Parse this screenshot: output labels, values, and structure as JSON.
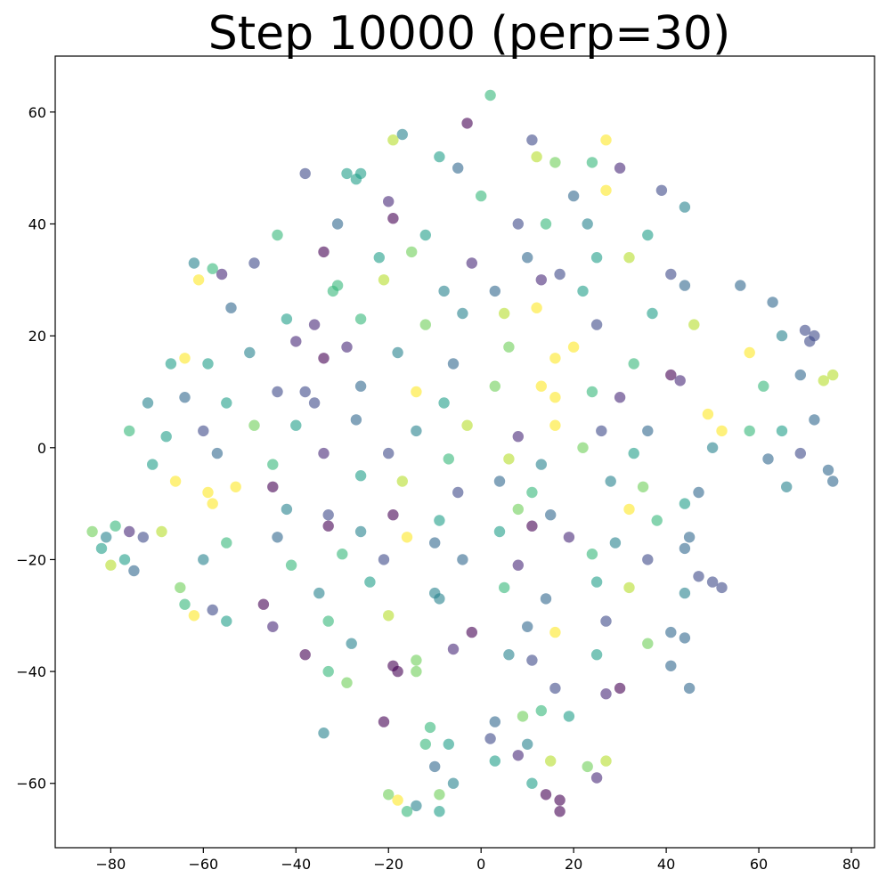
{
  "chart_data": {
    "type": "scatter",
    "title": "Step 10000 (perp=30)",
    "xlabel": "",
    "ylabel": "",
    "xlim": [
      -92,
      85
    ],
    "ylim": [
      -71.5,
      70
    ],
    "xticks": [
      -80,
      -60,
      -40,
      -20,
      0,
      20,
      40,
      60,
      80
    ],
    "yticks": [
      -60,
      -40,
      -20,
      0,
      20,
      40,
      60
    ],
    "grid": false,
    "legend": "none",
    "colormap": "viridis",
    "point_alpha": 0.6,
    "palette": [
      "#440154",
      "#482878",
      "#3e4989",
      "#31688e",
      "#26828e",
      "#1f9e89",
      "#35b779",
      "#6ece58",
      "#b5de2b",
      "#fde725"
    ],
    "points": [
      {
        "x": 2,
        "y": 63,
        "c": 6
      },
      {
        "x": -3,
        "y": 58,
        "c": 0
      },
      {
        "x": -17,
        "y": 56,
        "c": 4
      },
      {
        "x": -19,
        "y": 55,
        "c": 8
      },
      {
        "x": 11,
        "y": 55,
        "c": 2
      },
      {
        "x": 27,
        "y": 55,
        "c": 9
      },
      {
        "x": -9,
        "y": 52,
        "c": 5
      },
      {
        "x": 16,
        "y": 51,
        "c": 7
      },
      {
        "x": 24,
        "y": 51,
        "c": 6
      },
      {
        "x": -38,
        "y": 49,
        "c": 2
      },
      {
        "x": -29,
        "y": 49,
        "c": 5
      },
      {
        "x": -27,
        "y": 48,
        "c": 5
      },
      {
        "x": -26,
        "y": 49,
        "c": 5
      },
      {
        "x": -5,
        "y": 50,
        "c": 3
      },
      {
        "x": 12,
        "y": 52,
        "c": 8
      },
      {
        "x": 30,
        "y": 50,
        "c": 1
      },
      {
        "x": 39,
        "y": 46,
        "c": 2
      },
      {
        "x": 44,
        "y": 43,
        "c": 4
      },
      {
        "x": -20,
        "y": 44,
        "c": 1
      },
      {
        "x": -19,
        "y": 41,
        "c": 0
      },
      {
        "x": 0,
        "y": 45,
        "c": 6
      },
      {
        "x": 20,
        "y": 45,
        "c": 3
      },
      {
        "x": 27,
        "y": 46,
        "c": 9
      },
      {
        "x": -31,
        "y": 40,
        "c": 3
      },
      {
        "x": -44,
        "y": 38,
        "c": 6
      },
      {
        "x": -12,
        "y": 38,
        "c": 5
      },
      {
        "x": 8,
        "y": 40,
        "c": 2
      },
      {
        "x": 14,
        "y": 40,
        "c": 6
      },
      {
        "x": 23,
        "y": 40,
        "c": 4
      },
      {
        "x": 36,
        "y": 38,
        "c": 5
      },
      {
        "x": -62,
        "y": 33,
        "c": 4
      },
      {
        "x": -58,
        "y": 32,
        "c": 6
      },
      {
        "x": -49,
        "y": 33,
        "c": 2
      },
      {
        "x": -34,
        "y": 35,
        "c": 0
      },
      {
        "x": -22,
        "y": 34,
        "c": 5
      },
      {
        "x": -15,
        "y": 35,
        "c": 7
      },
      {
        "x": -2,
        "y": 33,
        "c": 1
      },
      {
        "x": 10,
        "y": 34,
        "c": 3
      },
      {
        "x": 25,
        "y": 34,
        "c": 5
      },
      {
        "x": 32,
        "y": 34,
        "c": 8
      },
      {
        "x": 41,
        "y": 31,
        "c": 2
      },
      {
        "x": -61,
        "y": 30,
        "c": 9
      },
      {
        "x": -56,
        "y": 31,
        "c": 1
      },
      {
        "x": -32,
        "y": 28,
        "c": 6
      },
      {
        "x": -31,
        "y": 29,
        "c": 6
      },
      {
        "x": -21,
        "y": 30,
        "c": 8
      },
      {
        "x": -8,
        "y": 28,
        "c": 4
      },
      {
        "x": 3,
        "y": 28,
        "c": 3
      },
      {
        "x": 13,
        "y": 30,
        "c": 1
      },
      {
        "x": 17,
        "y": 31,
        "c": 2
      },
      {
        "x": 22,
        "y": 28,
        "c": 5
      },
      {
        "x": 44,
        "y": 29,
        "c": 3
      },
      {
        "x": 56,
        "y": 29,
        "c": 3
      },
      {
        "x": 63,
        "y": 26,
        "c": 3
      },
      {
        "x": -54,
        "y": 25,
        "c": 3
      },
      {
        "x": -42,
        "y": 23,
        "c": 5
      },
      {
        "x": -36,
        "y": 22,
        "c": 1
      },
      {
        "x": -26,
        "y": 23,
        "c": 6
      },
      {
        "x": -12,
        "y": 22,
        "c": 7
      },
      {
        "x": -4,
        "y": 24,
        "c": 4
      },
      {
        "x": 5,
        "y": 24,
        "c": 8
      },
      {
        "x": 12,
        "y": 25,
        "c": 9
      },
      {
        "x": 25,
        "y": 22,
        "c": 2
      },
      {
        "x": 37,
        "y": 24,
        "c": 5
      },
      {
        "x": 46,
        "y": 22,
        "c": 8
      },
      {
        "x": 65,
        "y": 20,
        "c": 4
      },
      {
        "x": 70,
        "y": 21,
        "c": 2
      },
      {
        "x": 72,
        "y": 20,
        "c": 2
      },
      {
        "x": 71,
        "y": 19,
        "c": 2
      },
      {
        "x": -67,
        "y": 15,
        "c": 5
      },
      {
        "x": -64,
        "y": 16,
        "c": 9
      },
      {
        "x": -59,
        "y": 15,
        "c": 5
      },
      {
        "x": -50,
        "y": 17,
        "c": 4
      },
      {
        "x": -40,
        "y": 19,
        "c": 1
      },
      {
        "x": -34,
        "y": 16,
        "c": 0
      },
      {
        "x": -29,
        "y": 18,
        "c": 1
      },
      {
        "x": -18,
        "y": 17,
        "c": 4
      },
      {
        "x": -6,
        "y": 15,
        "c": 3
      },
      {
        "x": 6,
        "y": 18,
        "c": 7
      },
      {
        "x": 16,
        "y": 16,
        "c": 9
      },
      {
        "x": 20,
        "y": 18,
        "c": 9
      },
      {
        "x": 33,
        "y": 15,
        "c": 6
      },
      {
        "x": 58,
        "y": 17,
        "c": 9
      },
      {
        "x": 69,
        "y": 13,
        "c": 3
      },
      {
        "x": 74,
        "y": 12,
        "c": 8
      },
      {
        "x": 76,
        "y": 13,
        "c": 8
      },
      {
        "x": -72,
        "y": 8,
        "c": 4
      },
      {
        "x": -64,
        "y": 9,
        "c": 3
      },
      {
        "x": -55,
        "y": 8,
        "c": 5
      },
      {
        "x": -44,
        "y": 10,
        "c": 2
      },
      {
        "x": -38,
        "y": 10,
        "c": 2
      },
      {
        "x": -36,
        "y": 8,
        "c": 2
      },
      {
        "x": -26,
        "y": 11,
        "c": 3
      },
      {
        "x": -14,
        "y": 10,
        "c": 9
      },
      {
        "x": -8,
        "y": 8,
        "c": 5
      },
      {
        "x": 3,
        "y": 11,
        "c": 7
      },
      {
        "x": 13,
        "y": 11,
        "c": 9
      },
      {
        "x": 16,
        "y": 9,
        "c": 9
      },
      {
        "x": 24,
        "y": 10,
        "c": 6
      },
      {
        "x": 30,
        "y": 9,
        "c": 1
      },
      {
        "x": 41,
        "y": 13,
        "c": 0
      },
      {
        "x": 43,
        "y": 12,
        "c": 1
      },
      {
        "x": 61,
        "y": 11,
        "c": 6
      },
      {
        "x": -76,
        "y": 3,
        "c": 6
      },
      {
        "x": -68,
        "y": 2,
        "c": 5
      },
      {
        "x": -60,
        "y": 3,
        "c": 2
      },
      {
        "x": -49,
        "y": 4,
        "c": 7
      },
      {
        "x": -40,
        "y": 4,
        "c": 5
      },
      {
        "x": -27,
        "y": 5,
        "c": 3
      },
      {
        "x": -14,
        "y": 3,
        "c": 4
      },
      {
        "x": -3,
        "y": 4,
        "c": 8
      },
      {
        "x": 8,
        "y": 2,
        "c": 1
      },
      {
        "x": 16,
        "y": 4,
        "c": 9
      },
      {
        "x": 26,
        "y": 3,
        "c": 2
      },
      {
        "x": 36,
        "y": 3,
        "c": 3
      },
      {
        "x": 49,
        "y": 6,
        "c": 9
      },
      {
        "x": 52,
        "y": 3,
        "c": 9
      },
      {
        "x": 58,
        "y": 3,
        "c": 6
      },
      {
        "x": 65,
        "y": 3,
        "c": 5
      },
      {
        "x": 72,
        "y": 5,
        "c": 3
      },
      {
        "x": -71,
        "y": -3,
        "c": 5
      },
      {
        "x": -57,
        "y": -1,
        "c": 3
      },
      {
        "x": -45,
        "y": -3,
        "c": 6
      },
      {
        "x": -34,
        "y": -1,
        "c": 1
      },
      {
        "x": -20,
        "y": -1,
        "c": 2
      },
      {
        "x": -7,
        "y": -2,
        "c": 6
      },
      {
        "x": 6,
        "y": -2,
        "c": 8
      },
      {
        "x": 13,
        "y": -3,
        "c": 4
      },
      {
        "x": 22,
        "y": 0,
        "c": 7
      },
      {
        "x": 33,
        "y": -1,
        "c": 5
      },
      {
        "x": 50,
        "y": 0,
        "c": 4
      },
      {
        "x": 62,
        "y": -2,
        "c": 3
      },
      {
        "x": 69,
        "y": -1,
        "c": 2
      },
      {
        "x": 75,
        "y": -4,
        "c": 3
      },
      {
        "x": -66,
        "y": -6,
        "c": 9
      },
      {
        "x": -59,
        "y": -8,
        "c": 9
      },
      {
        "x": -53,
        "y": -7,
        "c": 9
      },
      {
        "x": -45,
        "y": -7,
        "c": 0
      },
      {
        "x": -26,
        "y": -5,
        "c": 5
      },
      {
        "x": -17,
        "y": -6,
        "c": 8
      },
      {
        "x": -5,
        "y": -8,
        "c": 2
      },
      {
        "x": 4,
        "y": -6,
        "c": 3
      },
      {
        "x": 11,
        "y": -8,
        "c": 6
      },
      {
        "x": 28,
        "y": -6,
        "c": 4
      },
      {
        "x": 35,
        "y": -7,
        "c": 7
      },
      {
        "x": 47,
        "y": -8,
        "c": 3
      },
      {
        "x": 66,
        "y": -7,
        "c": 4
      },
      {
        "x": 76,
        "y": -6,
        "c": 3
      },
      {
        "x": -58,
        "y": -10,
        "c": 9
      },
      {
        "x": -42,
        "y": -11,
        "c": 4
      },
      {
        "x": -33,
        "y": -12,
        "c": 2
      },
      {
        "x": -19,
        "y": -12,
        "c": 0
      },
      {
        "x": -9,
        "y": -13,
        "c": 5
      },
      {
        "x": 8,
        "y": -11,
        "c": 7
      },
      {
        "x": 15,
        "y": -12,
        "c": 3
      },
      {
        "x": 32,
        "y": -11,
        "c": 9
      },
      {
        "x": 44,
        "y": -10,
        "c": 5
      },
      {
        "x": 38,
        "y": -13,
        "c": 6
      },
      {
        "x": -84,
        "y": -15,
        "c": 7
      },
      {
        "x": -81,
        "y": -16,
        "c": 4
      },
      {
        "x": -79,
        "y": -14,
        "c": 6
      },
      {
        "x": -76,
        "y": -15,
        "c": 1
      },
      {
        "x": -73,
        "y": -16,
        "c": 2
      },
      {
        "x": -69,
        "y": -15,
        "c": 8
      },
      {
        "x": -55,
        "y": -17,
        "c": 6
      },
      {
        "x": -44,
        "y": -16,
        "c": 3
      },
      {
        "x": -33,
        "y": -14,
        "c": 0
      },
      {
        "x": -26,
        "y": -15,
        "c": 4
      },
      {
        "x": -16,
        "y": -16,
        "c": 9
      },
      {
        "x": -10,
        "y": -17,
        "c": 3
      },
      {
        "x": 4,
        "y": -15,
        "c": 5
      },
      {
        "x": 11,
        "y": -14,
        "c": 0
      },
      {
        "x": 19,
        "y": -16,
        "c": 1
      },
      {
        "x": 29,
        "y": -17,
        "c": 4
      },
      {
        "x": 45,
        "y": -16,
        "c": 3
      },
      {
        "x": 44,
        "y": -18,
        "c": 3
      },
      {
        "x": -82,
        "y": -18,
        "c": 5
      },
      {
        "x": -77,
        "y": -20,
        "c": 5
      },
      {
        "x": -75,
        "y": -22,
        "c": 3
      },
      {
        "x": -80,
        "y": -21,
        "c": 8
      },
      {
        "x": -60,
        "y": -20,
        "c": 4
      },
      {
        "x": -41,
        "y": -21,
        "c": 6
      },
      {
        "x": -30,
        "y": -19,
        "c": 6
      },
      {
        "x": -21,
        "y": -20,
        "c": 2
      },
      {
        "x": -4,
        "y": -20,
        "c": 3
      },
      {
        "x": 8,
        "y": -21,
        "c": 1
      },
      {
        "x": 24,
        "y": -19,
        "c": 6
      },
      {
        "x": 36,
        "y": -20,
        "c": 2
      },
      {
        "x": 47,
        "y": -23,
        "c": 2
      },
      {
        "x": 50,
        "y": -24,
        "c": 2
      },
      {
        "x": 52,
        "y": -25,
        "c": 2
      },
      {
        "x": -65,
        "y": -25,
        "c": 7
      },
      {
        "x": -64,
        "y": -28,
        "c": 6
      },
      {
        "x": -58,
        "y": -29,
        "c": 2
      },
      {
        "x": -47,
        "y": -28,
        "c": 0
      },
      {
        "x": -35,
        "y": -26,
        "c": 4
      },
      {
        "x": -24,
        "y": -24,
        "c": 5
      },
      {
        "x": -10,
        "y": -26,
        "c": 4
      },
      {
        "x": -9,
        "y": -27,
        "c": 4
      },
      {
        "x": 5,
        "y": -25,
        "c": 6
      },
      {
        "x": 14,
        "y": -27,
        "c": 3
      },
      {
        "x": 25,
        "y": -24,
        "c": 5
      },
      {
        "x": 32,
        "y": -25,
        "c": 8
      },
      {
        "x": 44,
        "y": -26,
        "c": 4
      },
      {
        "x": -62,
        "y": -30,
        "c": 9
      },
      {
        "x": -55,
        "y": -31,
        "c": 5
      },
      {
        "x": -45,
        "y": -32,
        "c": 1
      },
      {
        "x": -33,
        "y": -31,
        "c": 6
      },
      {
        "x": -20,
        "y": -30,
        "c": 8
      },
      {
        "x": -2,
        "y": -33,
        "c": 0
      },
      {
        "x": 10,
        "y": -32,
        "c": 3
      },
      {
        "x": 16,
        "y": -33,
        "c": 9
      },
      {
        "x": 27,
        "y": -31,
        "c": 2
      },
      {
        "x": 41,
        "y": -33,
        "c": 3
      },
      {
        "x": 44,
        "y": -34,
        "c": 3
      },
      {
        "x": -38,
        "y": -37,
        "c": 0
      },
      {
        "x": -28,
        "y": -35,
        "c": 4
      },
      {
        "x": -19,
        "y": -39,
        "c": 0
      },
      {
        "x": -18,
        "y": -40,
        "c": 0
      },
      {
        "x": -14,
        "y": -38,
        "c": 7
      },
      {
        "x": -14,
        "y": -40,
        "c": 7
      },
      {
        "x": -6,
        "y": -36,
        "c": 1
      },
      {
        "x": 6,
        "y": -37,
        "c": 4
      },
      {
        "x": 11,
        "y": -38,
        "c": 2
      },
      {
        "x": 25,
        "y": -37,
        "c": 5
      },
      {
        "x": 36,
        "y": -35,
        "c": 7
      },
      {
        "x": 41,
        "y": -39,
        "c": 3
      },
      {
        "x": -33,
        "y": -40,
        "c": 6
      },
      {
        "x": -29,
        "y": -42,
        "c": 7
      },
      {
        "x": 16,
        "y": -43,
        "c": 2
      },
      {
        "x": 27,
        "y": -44,
        "c": 1
      },
      {
        "x": 30,
        "y": -43,
        "c": 0
      },
      {
        "x": 45,
        "y": -43,
        "c": 3
      },
      {
        "x": 3,
        "y": -49,
        "c": 3
      },
      {
        "x": 9,
        "y": -48,
        "c": 7
      },
      {
        "x": 13,
        "y": -47,
        "c": 6
      },
      {
        "x": 19,
        "y": -48,
        "c": 5
      },
      {
        "x": -34,
        "y": -51,
        "c": 4
      },
      {
        "x": -21,
        "y": -49,
        "c": 0
      },
      {
        "x": -11,
        "y": -50,
        "c": 6
      },
      {
        "x": -12,
        "y": -53,
        "c": 6
      },
      {
        "x": 2,
        "y": -52,
        "c": 2
      },
      {
        "x": 10,
        "y": -53,
        "c": 4
      },
      {
        "x": -7,
        "y": -53,
        "c": 5
      },
      {
        "x": 3,
        "y": -56,
        "c": 5
      },
      {
        "x": 8,
        "y": -55,
        "c": 1
      },
      {
        "x": 15,
        "y": -56,
        "c": 8
      },
      {
        "x": 23,
        "y": -57,
        "c": 7
      },
      {
        "x": 27,
        "y": -56,
        "c": 8
      },
      {
        "x": -10,
        "y": -57,
        "c": 3
      },
      {
        "x": -6,
        "y": -60,
        "c": 4
      },
      {
        "x": 11,
        "y": -60,
        "c": 5
      },
      {
        "x": 25,
        "y": -59,
        "c": 1
      },
      {
        "x": -20,
        "y": -62,
        "c": 7
      },
      {
        "x": -18,
        "y": -63,
        "c": 9
      },
      {
        "x": -14,
        "y": -64,
        "c": 4
      },
      {
        "x": -9,
        "y": -62,
        "c": 7
      },
      {
        "x": 14,
        "y": -62,
        "c": 0
      },
      {
        "x": 17,
        "y": -63,
        "c": 0
      },
      {
        "x": -16,
        "y": -65,
        "c": 6
      },
      {
        "x": -9,
        "y": -65,
        "c": 5
      },
      {
        "x": 17,
        "y": -65,
        "c": 0
      }
    ]
  }
}
